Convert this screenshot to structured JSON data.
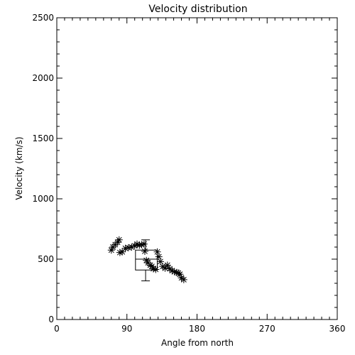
{
  "chart_data": {
    "type": "scatter",
    "title": "Velocity distribution",
    "xlabel": "Angle from north",
    "ylabel": "Velocity (km/s)",
    "xlim": [
      0,
      360
    ],
    "ylim": [
      0,
      2500
    ],
    "xticks": [
      0,
      90,
      180,
      270,
      360
    ],
    "yticks": [
      0,
      500,
      1000,
      1500,
      2000,
      2500
    ],
    "x_minor_step": 10,
    "y_minor_step": 100,
    "grid": false,
    "marker": "asterisk",
    "points": [
      {
        "x": 70,
        "y": 575
      },
      {
        "x": 72,
        "y": 600
      },
      {
        "x": 75,
        "y": 620
      },
      {
        "x": 78,
        "y": 640
      },
      {
        "x": 80,
        "y": 660
      },
      {
        "x": 81,
        "y": 555
      },
      {
        "x": 84,
        "y": 560
      },
      {
        "x": 88,
        "y": 590
      },
      {
        "x": 92,
        "y": 595
      },
      {
        "x": 96,
        "y": 600
      },
      {
        "x": 100,
        "y": 610
      },
      {
        "x": 103,
        "y": 625
      },
      {
        "x": 106,
        "y": 615
      },
      {
        "x": 109,
        "y": 620
      },
      {
        "x": 112,
        "y": 625
      },
      {
        "x": 113,
        "y": 565
      },
      {
        "x": 115,
        "y": 490
      },
      {
        "x": 117,
        "y": 470
      },
      {
        "x": 120,
        "y": 450
      },
      {
        "x": 122,
        "y": 440
      },
      {
        "x": 124,
        "y": 420
      },
      {
        "x": 127,
        "y": 415
      },
      {
        "x": 129,
        "y": 560
      },
      {
        "x": 131,
        "y": 520
      },
      {
        "x": 133,
        "y": 480
      },
      {
        "x": 136,
        "y": 440
      },
      {
        "x": 139,
        "y": 425
      },
      {
        "x": 142,
        "y": 450
      },
      {
        "x": 145,
        "y": 420
      },
      {
        "x": 148,
        "y": 405
      },
      {
        "x": 151,
        "y": 395
      },
      {
        "x": 154,
        "y": 390
      },
      {
        "x": 156,
        "y": 385
      },
      {
        "x": 158,
        "y": 375
      },
      {
        "x": 160,
        "y": 345
      },
      {
        "x": 163,
        "y": 330
      }
    ],
    "box": {
      "x_left": 101,
      "x_right": 129,
      "x_center": 114,
      "whisker_low": 320,
      "q1": 410,
      "median": 500,
      "q3": 575,
      "whisker_high": 660
    }
  }
}
